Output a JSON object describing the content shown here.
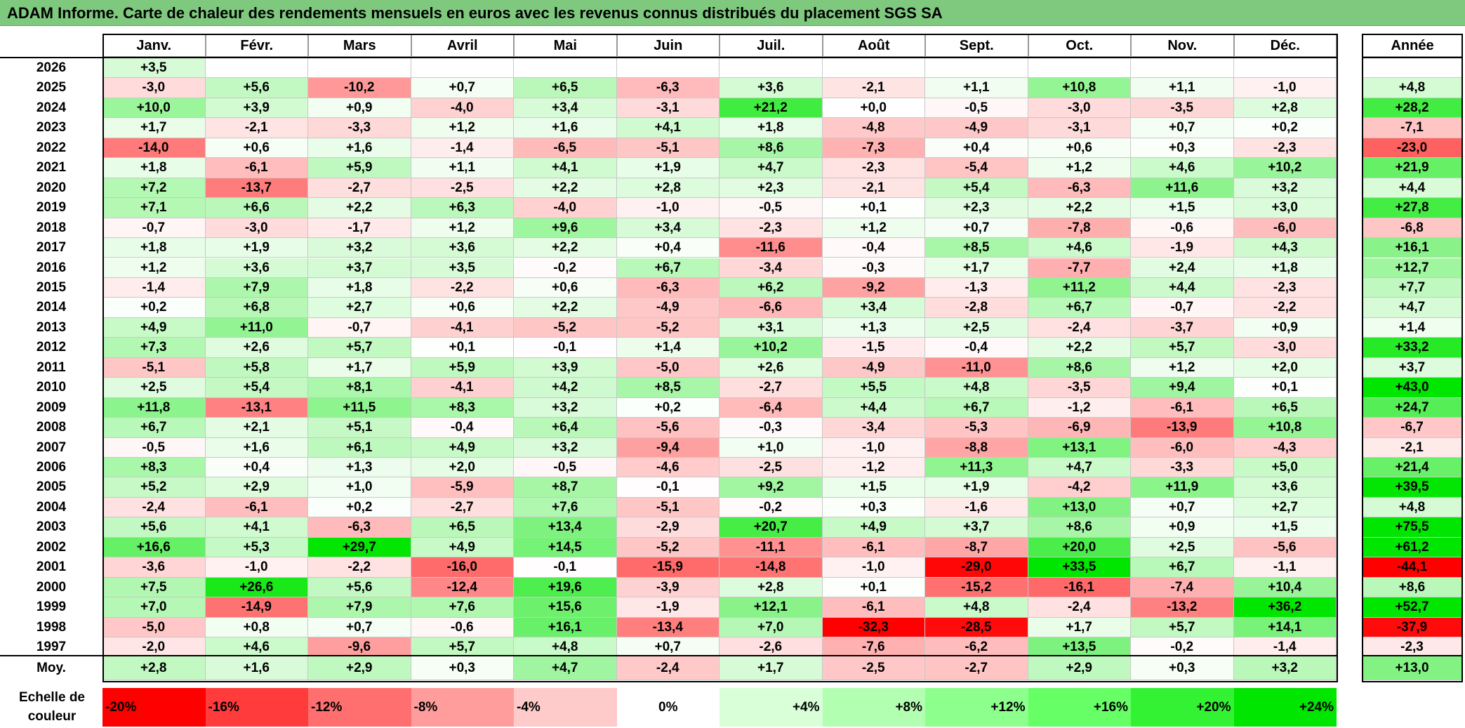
{
  "title": "ADAM Informe. Carte de chaleur des rendements mensuels en euros avec les revenus connus distribués du placement SGS SA",
  "chart_data": {
    "type": "heatmap",
    "months": [
      "Janv.",
      "Févr.",
      "Mars",
      "Avril",
      "Mai",
      "Juin",
      "Juil.",
      "Août",
      "Sept.",
      "Oct.",
      "Nov.",
      "Déc."
    ],
    "annual_header": "Année",
    "rows": [
      {
        "year": "2026",
        "values": [
          "+3,5",
          null,
          null,
          null,
          null,
          null,
          null,
          null,
          null,
          null,
          null,
          null
        ],
        "annual": null
      },
      {
        "year": "2025",
        "values": [
          "-3,0",
          "+5,6",
          "-10,2",
          "+0,7",
          "+6,5",
          "-6,3",
          "+3,6",
          "-2,1",
          "+1,1",
          "+10,8",
          "+1,1",
          "-1,0"
        ],
        "annual": "+4,8"
      },
      {
        "year": "2024",
        "values": [
          "+10,0",
          "+3,9",
          "+0,9",
          "-4,0",
          "+3,4",
          "-3,1",
          "+21,2",
          "+0,0",
          "-0,5",
          "-3,0",
          "-3,5",
          "+2,8"
        ],
        "annual": "+28,2"
      },
      {
        "year": "2023",
        "values": [
          "+1,7",
          "-2,1",
          "-3,3",
          "+1,2",
          "+1,6",
          "+4,1",
          "+1,8",
          "-4,8",
          "-4,9",
          "-3,1",
          "+0,7",
          "+0,2"
        ],
        "annual": "-7,1"
      },
      {
        "year": "2022",
        "values": [
          "-14,0",
          "+0,6",
          "+1,6",
          "-1,4",
          "-6,5",
          "-5,1",
          "+8,6",
          "-7,3",
          "+0,4",
          "+0,6",
          "+0,3",
          "-2,3"
        ],
        "annual": "-23,0"
      },
      {
        "year": "2021",
        "values": [
          "+1,8",
          "-6,1",
          "+5,9",
          "+1,1",
          "+4,1",
          "+1,9",
          "+4,7",
          "-2,3",
          "-5,4",
          "+1,2",
          "+4,6",
          "+10,2"
        ],
        "annual": "+21,9"
      },
      {
        "year": "2020",
        "values": [
          "+7,2",
          "-13,7",
          "-2,7",
          "-2,5",
          "+2,2",
          "+2,8",
          "+2,3",
          "-2,1",
          "+5,4",
          "-6,3",
          "+11,6",
          "+3,2"
        ],
        "annual": "+4,4"
      },
      {
        "year": "2019",
        "values": [
          "+7,1",
          "+6,6",
          "+2,2",
          "+6,3",
          "-4,0",
          "-1,0",
          "-0,5",
          "+0,1",
          "+2,3",
          "+2,2",
          "+1,5",
          "+3,0"
        ],
        "annual": "+27,8"
      },
      {
        "year": "2018",
        "values": [
          "-0,7",
          "-3,0",
          "-1,7",
          "+1,2",
          "+9,6",
          "+3,4",
          "-2,3",
          "+1,2",
          "+0,7",
          "-7,8",
          "-0,6",
          "-6,0"
        ],
        "annual": "-6,8"
      },
      {
        "year": "2017",
        "values": [
          "+1,8",
          "+1,9",
          "+3,2",
          "+3,6",
          "+2,2",
          "+0,4",
          "-11,6",
          "-0,4",
          "+8,5",
          "+4,6",
          "-1,9",
          "+4,3"
        ],
        "annual": "+16,1"
      },
      {
        "year": "2016",
        "values": [
          "+1,2",
          "+3,6",
          "+3,7",
          "+3,5",
          "-0,2",
          "+6,7",
          "-3,4",
          "-0,3",
          "+1,7",
          "-7,7",
          "+2,4",
          "+1,8"
        ],
        "annual": "+12,7"
      },
      {
        "year": "2015",
        "values": [
          "-1,4",
          "+7,9",
          "+1,8",
          "-2,2",
          "+0,6",
          "-6,3",
          "+6,2",
          "-9,2",
          "-1,3",
          "+11,2",
          "+4,4",
          "-2,3"
        ],
        "annual": "+7,7"
      },
      {
        "year": "2014",
        "values": [
          "+0,2",
          "+6,8",
          "+2,7",
          "+0,6",
          "+2,2",
          "-4,9",
          "-6,6",
          "+3,4",
          "-2,8",
          "+6,7",
          "-0,7",
          "-2,2"
        ],
        "annual": "+4,7"
      },
      {
        "year": "2013",
        "values": [
          "+4,9",
          "+11,0",
          "-0,7",
          "-4,1",
          "-5,2",
          "-5,2",
          "+3,1",
          "+1,3",
          "+2,5",
          "-2,4",
          "-3,7",
          "+0,9"
        ],
        "annual": "+1,4"
      },
      {
        "year": "2012",
        "values": [
          "+7,3",
          "+2,6",
          "+5,7",
          "+0,1",
          "-0,1",
          "+1,4",
          "+10,2",
          "-1,5",
          "-0,4",
          "+2,2",
          "+5,7",
          "-3,0"
        ],
        "annual": "+33,2"
      },
      {
        "year": "2011",
        "values": [
          "-5,1",
          "+5,8",
          "+1,7",
          "+5,9",
          "+3,9",
          "-5,0",
          "+2,6",
          "-4,9",
          "-11,0",
          "+8,6",
          "+1,2",
          "+2,0"
        ],
        "annual": "+3,7"
      },
      {
        "year": "2010",
        "values": [
          "+2,5",
          "+5,4",
          "+8,1",
          "-4,1",
          "+4,2",
          "+8,5",
          "-2,7",
          "+5,5",
          "+4,8",
          "-3,5",
          "+9,4",
          "+0,1"
        ],
        "annual": "+43,0"
      },
      {
        "year": "2009",
        "values": [
          "+11,8",
          "-13,1",
          "+11,5",
          "+8,3",
          "+3,2",
          "+0,2",
          "-6,4",
          "+4,4",
          "+6,7",
          "-1,2",
          "-6,1",
          "+6,5"
        ],
        "annual": "+24,7"
      },
      {
        "year": "2008",
        "values": [
          "+6,7",
          "+2,1",
          "+5,1",
          "-0,4",
          "+6,4",
          "-5,6",
          "-0,3",
          "-3,4",
          "-5,3",
          "-6,9",
          "-13,9",
          "+10,8"
        ],
        "annual": "-6,7"
      },
      {
        "year": "2007",
        "values": [
          "-0,5",
          "+1,6",
          "+6,1",
          "+4,9",
          "+3,2",
          "-9,4",
          "+1,0",
          "-1,0",
          "-8,8",
          "+13,1",
          "-6,0",
          "-4,3"
        ],
        "annual": "-2,1"
      },
      {
        "year": "2006",
        "values": [
          "+8,3",
          "+0,4",
          "+1,3",
          "+2,0",
          "-0,5",
          "-4,6",
          "-2,5",
          "-1,2",
          "+11,3",
          "+4,7",
          "-3,3",
          "+5,0"
        ],
        "annual": "+21,4"
      },
      {
        "year": "2005",
        "values": [
          "+5,2",
          "+2,9",
          "+1,0",
          "-5,9",
          "+8,7",
          "-0,1",
          "+9,2",
          "+1,5",
          "+1,9",
          "-4,2",
          "+11,9",
          "+3,6"
        ],
        "annual": "+39,5"
      },
      {
        "year": "2004",
        "values": [
          "-2,4",
          "-6,1",
          "+0,2",
          "-2,7",
          "+7,6",
          "-5,1",
          "-0,2",
          "+0,3",
          "-1,6",
          "+13,0",
          "+0,7",
          "+2,7"
        ],
        "annual": "+4,8"
      },
      {
        "year": "2003",
        "values": [
          "+5,6",
          "+4,1",
          "-6,3",
          "+6,5",
          "+13,4",
          "-2,9",
          "+20,7",
          "+4,9",
          "+3,7",
          "+8,6",
          "+0,9",
          "+1,5"
        ],
        "annual": "+75,5"
      },
      {
        "year": "2002",
        "values": [
          "+16,6",
          "+5,3",
          "+29,7",
          "+4,9",
          "+14,5",
          "-5,2",
          "-11,1",
          "-6,1",
          "-8,7",
          "+20,0",
          "+2,5",
          "-5,6"
        ],
        "annual": "+61,2"
      },
      {
        "year": "2001",
        "values": [
          "-3,6",
          "-1,0",
          "-2,2",
          "-16,0",
          "-0,1",
          "-15,9",
          "-14,8",
          "-1,0",
          "-29,0",
          "+33,5",
          "+6,7",
          "-1,1"
        ],
        "annual": "-44,1"
      },
      {
        "year": "2000",
        "values": [
          "+7,5",
          "+26,6",
          "+5,6",
          "-12,4",
          "+19,6",
          "-3,9",
          "+2,8",
          "+0,1",
          "-15,2",
          "-16,1",
          "-7,4",
          "+10,4"
        ],
        "annual": "+8,6"
      },
      {
        "year": "1999",
        "values": [
          "+7,0",
          "-14,9",
          "+7,9",
          "+7,6",
          "+15,6",
          "-1,9",
          "+12,1",
          "-6,1",
          "+4,8",
          "-2,4",
          "-13,2",
          "+36,2"
        ],
        "annual": "+52,7"
      },
      {
        "year": "1998",
        "values": [
          "-5,0",
          "+0,8",
          "+0,7",
          "-0,6",
          "+16,1",
          "-13,4",
          "+7,0",
          "-32,3",
          "-28,5",
          "+1,7",
          "+5,7",
          "+14,1"
        ],
        "annual": "-37,9"
      },
      {
        "year": "1997",
        "values": [
          "-2,0",
          "+4,6",
          "-9,6",
          "+5,7",
          "+4,8",
          "+0,7",
          "-2,6",
          "-7,6",
          "-6,2",
          "+13,5",
          "-0,2",
          "-1,4"
        ],
        "annual": "-2,3"
      }
    ],
    "average": {
      "label": "Moy.",
      "values": [
        "+2,8",
        "+1,6",
        "+2,9",
        "+0,3",
        "+4,7",
        "-2,4",
        "+1,7",
        "-2,5",
        "-2,7",
        "+2,9",
        "+0,3",
        "+3,2"
      ],
      "annual": "+13,0"
    },
    "scale": {
      "label": "Echelle de couleur",
      "steps": [
        "-20%",
        "-16%",
        "-12%",
        "-8%",
        "-4%",
        "0%",
        "+4%",
        "+8%",
        "+12%",
        "+16%",
        "+20%",
        "+24%"
      ],
      "colors": [
        "#ff0000",
        "#ff3b3b",
        "#ff6f6f",
        "#ff9d9d",
        "#ffcaca",
        "#ffffff",
        "#d9ffd9",
        "#b2ffb2",
        "#8cff8c",
        "#66ff66",
        "#33f233",
        "#00e600"
      ]
    }
  }
}
